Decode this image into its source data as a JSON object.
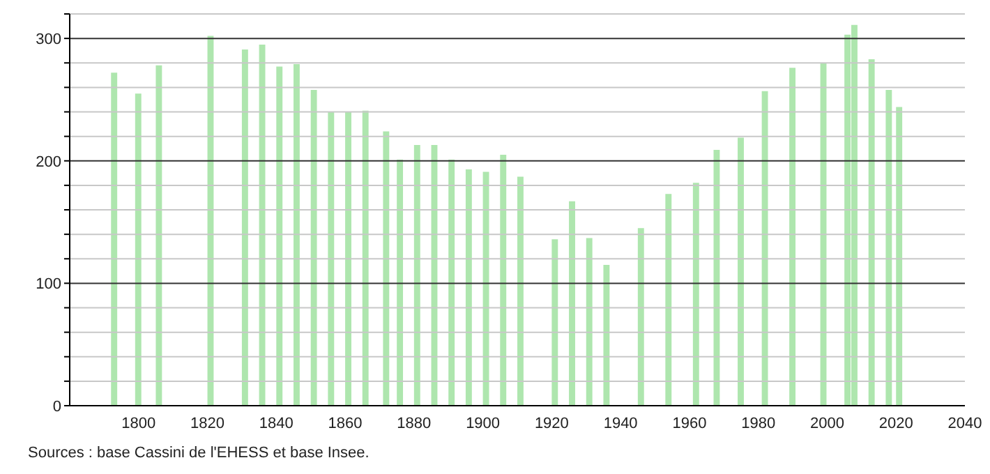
{
  "chart_data": {
    "type": "bar",
    "x": [
      1793,
      1800,
      1806,
      1821,
      1831,
      1836,
      1841,
      1846,
      1851,
      1856,
      1861,
      1866,
      1872,
      1876,
      1881,
      1886,
      1891,
      1896,
      1901,
      1906,
      1911,
      1921,
      1926,
      1931,
      1936,
      1946,
      1954,
      1962,
      1968,
      1975,
      1982,
      1990,
      1999,
      2006,
      2008,
      2013,
      2018,
      2021
    ],
    "values": [
      272,
      255,
      278,
      302,
      291,
      295,
      277,
      279,
      258,
      240,
      240,
      241,
      224,
      201,
      213,
      213,
      201,
      193,
      191,
      205,
      187,
      136,
      167,
      137,
      115,
      145,
      173,
      182,
      209,
      219,
      257,
      276,
      280,
      303,
      311,
      283,
      258,
      244
    ],
    "color": "#aee6ae",
    "xlim": [
      1780,
      2040
    ],
    "xticks": [
      1800,
      1820,
      1840,
      1860,
      1880,
      1900,
      1920,
      1940,
      1960,
      1980,
      2000,
      2020,
      2040
    ],
    "ylim": [
      0,
      320
    ],
    "yticks": [
      0,
      {
        "value": 20,
        "label": null
      },
      {
        "value": 40,
        "label": null
      },
      {
        "value": 60,
        "label": null
      },
      {
        "value": 80,
        "label": null
      },
      100,
      {
        "value": 120,
        "label": null
      },
      {
        "value": 140,
        "label": null
      },
      {
        "value": 160,
        "label": null
      },
      {
        "value": 180,
        "label": null
      },
      200,
      {
        "value": 220,
        "label": null
      },
      {
        "value": 240,
        "label": null
      },
      {
        "value": 260,
        "label": null
      },
      {
        "value": 280,
        "label": null
      },
      300,
      {
        "value": 320,
        "label": null
      }
    ],
    "grid": true,
    "annotations": [
      "Sources : base Cassini de l'EHESS et base Insee."
    ]
  }
}
